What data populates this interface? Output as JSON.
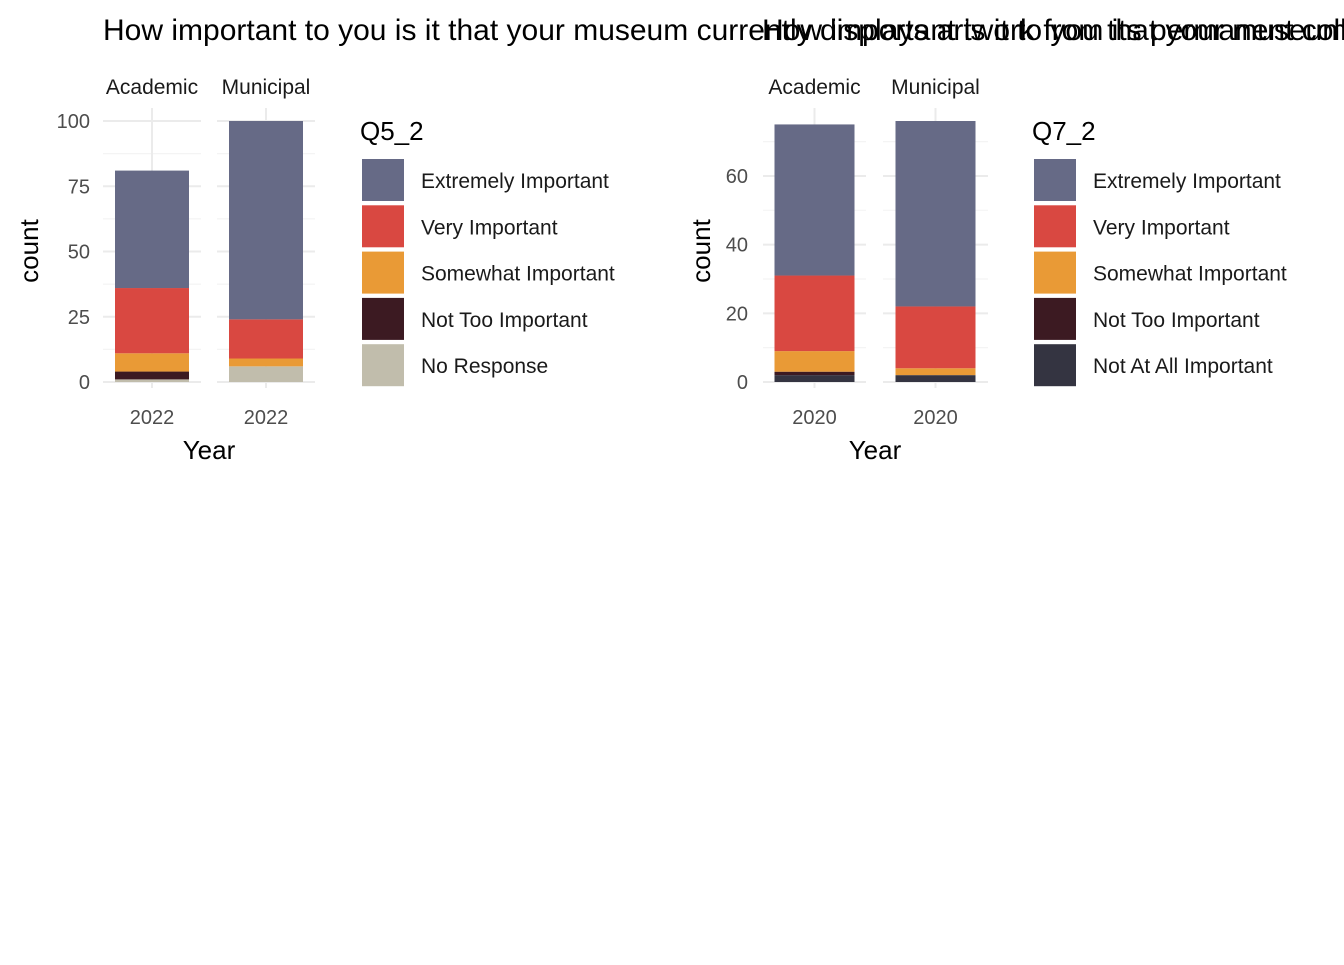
{
  "chart_data": [
    {
      "type": "bar",
      "stacked": true,
      "title": "How important to you is it that your museum currently displays artwork from its permanent collection?",
      "xlabel": "Year",
      "ylabel": "count",
      "ylim": [
        0,
        100
      ],
      "yticks": [
        0,
        25,
        50,
        75,
        100
      ],
      "grid": true,
      "legend_title": "Q5_2",
      "legend_position": "right",
      "facets": [
        {
          "label": "Academic",
          "categories": [
            "2022"
          ]
        },
        {
          "label": "Municipal",
          "categories": [
            "2022"
          ]
        }
      ],
      "series": [
        {
          "name": "No Response",
          "color": "#c1bdac",
          "values": [
            1,
            6
          ]
        },
        {
          "name": "Not Too Important",
          "color": "#3c1a22",
          "values": [
            3,
            0
          ]
        },
        {
          "name": "Somewhat Important",
          "color": "#e99a36",
          "values": [
            7,
            3
          ]
        },
        {
          "name": "Very Important",
          "color": "#d94841",
          "values": [
            25,
            15
          ]
        },
        {
          "name": "Extremely Important",
          "color": "#666a86",
          "values": [
            45,
            76
          ]
        }
      ],
      "legend_order": [
        "Extremely Important",
        "Very Important",
        "Somewhat Important",
        "Not Too Important",
        "No Response"
      ]
    },
    {
      "type": "bar",
      "stacked": true,
      "title": "How important is it to you that your museum works with artists to develop work that is a part of your exhibition program?",
      "xlabel": "Year",
      "ylabel": "count",
      "ylim": [
        0,
        78
      ],
      "yticks": [
        0,
        20,
        40,
        60
      ],
      "grid": true,
      "legend_title": "Q7_2",
      "legend_position": "right",
      "facets": [
        {
          "label": "Academic",
          "categories": [
            "2020"
          ]
        },
        {
          "label": "Municipal",
          "categories": [
            "2020"
          ]
        }
      ],
      "series": [
        {
          "name": "Not At All Important",
          "color": "#343441",
          "values": [
            2,
            2
          ]
        },
        {
          "name": "Not Too Important",
          "color": "#3c1a22",
          "values": [
            1,
            0
          ]
        },
        {
          "name": "Somewhat Important",
          "color": "#e99a36",
          "values": [
            6,
            2
          ]
        },
        {
          "name": "Very Important",
          "color": "#d94841",
          "values": [
            22,
            18
          ]
        },
        {
          "name": "Extremely Important",
          "color": "#666a86",
          "values": [
            44,
            54
          ]
        }
      ],
      "legend_order": [
        "Extremely Important",
        "Very Important",
        "Somewhat Important",
        "Not Too Important",
        "Not At All Important"
      ]
    }
  ]
}
